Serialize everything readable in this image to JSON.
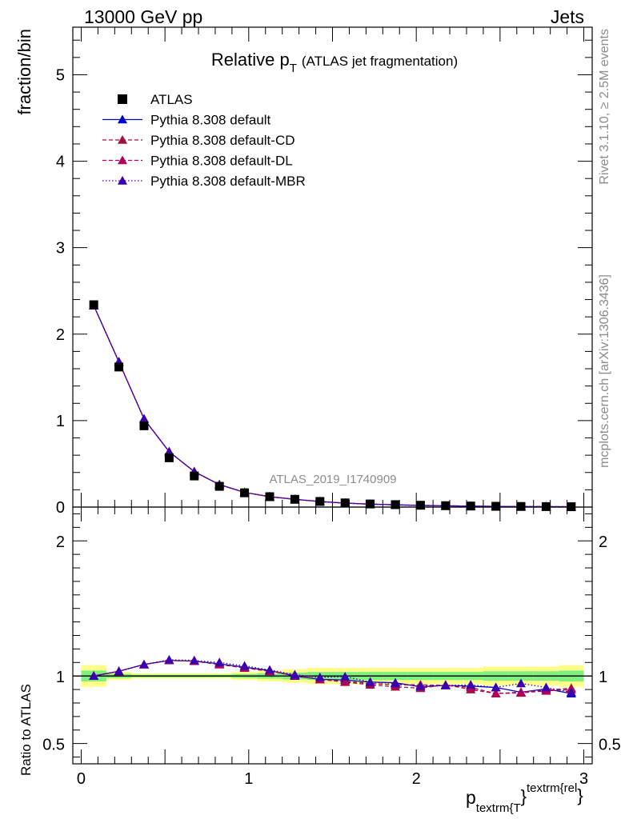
{
  "header": {
    "left": "13000 GeV pp",
    "right": "Jets"
  },
  "side_text": {
    "rivet": "Rivet 3.1.10, ≥ 2.5M events",
    "mcplots": "mcplots.cern.ch [arXiv:1306.3436]"
  },
  "colors": {
    "data": "#000000",
    "default": "#0000cc",
    "cd": "#a01040",
    "dl": "#b0005a",
    "mbr": "#3a00b0",
    "band_inner": "#7ff07f",
    "band_outer": "#ffff88",
    "ref_line": "#006400"
  },
  "chart_data": [
    {
      "type": "scatter",
      "title_main": "Relative p",
      "title_sub": "T",
      "title_rest": "(ATLAS jet fragmentation)",
      "ylabel": "fraction/bin",
      "watermark": "ATLAS_2019_I1740909",
      "xlim": [
        -0.05,
        3.05
      ],
      "ylim": [
        0,
        5.55
      ],
      "yticks": [
        0,
        1,
        2,
        3,
        4,
        5
      ],
      "ytick_labels": [
        "0",
        "1",
        "2",
        "3",
        "4",
        "5"
      ],
      "x": [
        0.075,
        0.225,
        0.375,
        0.525,
        0.675,
        0.825,
        0.975,
        1.125,
        1.275,
        1.425,
        1.575,
        1.725,
        1.875,
        2.025,
        2.175,
        2.325,
        2.475,
        2.625,
        2.775,
        2.925
      ],
      "legend": [
        "ATLAS",
        "Pythia 8.308 default",
        "Pythia 8.308 default-CD",
        "Pythia 8.308 default-DL",
        "Pythia 8.308 default-MBR"
      ],
      "series": [
        {
          "name": "ATLAS",
          "values": [
            2.34,
            1.62,
            0.94,
            0.57,
            0.36,
            0.24,
            0.165,
            0.12,
            0.09,
            0.065,
            0.048,
            0.036,
            0.028,
            0.021,
            0.016,
            0.012,
            0.009,
            0.007,
            0.0055,
            0.004
          ]
        },
        {
          "name": "Pythia 8.308 default",
          "values": [
            2.33,
            1.68,
            1.02,
            0.64,
            0.41,
            0.26,
            0.17,
            0.12,
            0.09,
            0.064,
            0.046,
            0.034,
            0.026,
            0.019,
            0.015,
            0.011,
            0.008,
            0.006,
            0.005,
            0.0035
          ]
        },
        {
          "name": "Pythia 8.308 default-CD",
          "values": [
            2.33,
            1.68,
            1.02,
            0.64,
            0.41,
            0.26,
            0.17,
            0.12,
            0.09,
            0.063,
            0.046,
            0.034,
            0.026,
            0.019,
            0.015,
            0.011,
            0.008,
            0.006,
            0.005,
            0.0035
          ]
        },
        {
          "name": "Pythia 8.308 default-DL",
          "values": [
            2.33,
            1.68,
            1.02,
            0.64,
            0.41,
            0.26,
            0.17,
            0.12,
            0.09,
            0.063,
            0.046,
            0.034,
            0.026,
            0.019,
            0.015,
            0.011,
            0.008,
            0.006,
            0.005,
            0.0035
          ]
        },
        {
          "name": "Pythia 8.308 default-MBR",
          "values": [
            2.33,
            1.68,
            1.02,
            0.64,
            0.41,
            0.26,
            0.17,
            0.12,
            0.09,
            0.064,
            0.046,
            0.034,
            0.026,
            0.019,
            0.015,
            0.011,
            0.008,
            0.006,
            0.005,
            0.0035
          ]
        }
      ]
    },
    {
      "type": "line",
      "ylabel": "Ratio to ATLAS",
      "xlabel_main": "p",
      "xlabel_sub": "textrm{T",
      "xlabel_sup": "textrm{rel",
      "xlim": [
        -0.05,
        3.05
      ],
      "ylim": [
        0.35,
        2.25
      ],
      "yticks": [
        0.5,
        1,
        2
      ],
      "ytick_labels": [
        "0.5",
        "1",
        "2"
      ],
      "xticks": [
        0,
        1,
        2,
        3
      ],
      "xtick_labels": [
        "0",
        "1",
        "2",
        "3"
      ],
      "x": [
        0.075,
        0.225,
        0.375,
        0.525,
        0.675,
        0.825,
        0.975,
        1.125,
        1.275,
        1.425,
        1.575,
        1.725,
        1.875,
        2.025,
        2.175,
        2.325,
        2.475,
        2.625,
        2.775,
        2.925
      ],
      "band_inner": [
        0.04,
        0.015,
        0.01,
        0.01,
        0.01,
        0.01,
        0.015,
        0.02,
        0.025,
        0.03,
        0.03,
        0.03,
        0.03,
        0.03,
        0.03,
        0.03,
        0.035,
        0.035,
        0.035,
        0.04
      ],
      "band_outer": [
        0.08,
        0.03,
        0.02,
        0.02,
        0.02,
        0.02,
        0.03,
        0.04,
        0.05,
        0.06,
        0.06,
        0.06,
        0.06,
        0.06,
        0.06,
        0.06,
        0.07,
        0.07,
        0.07,
        0.08
      ],
      "series": [
        {
          "name": "Pythia 8.308 default",
          "values": [
            1.0,
            1.035,
            1.085,
            1.115,
            1.11,
            1.09,
            1.065,
            1.04,
            1.0,
            0.975,
            0.97,
            0.955,
            0.95,
            0.92,
            0.93,
            0.925,
            0.915,
            0.88,
            0.905,
            0.87
          ]
        },
        {
          "name": "Pythia 8.308 default-CD",
          "values": [
            1.0,
            1.035,
            1.085,
            1.115,
            1.11,
            1.085,
            1.06,
            1.035,
            1.005,
            0.975,
            0.955,
            0.935,
            0.92,
            0.91,
            0.935,
            0.9,
            0.87,
            0.88,
            0.895,
            0.91
          ]
        },
        {
          "name": "Pythia 8.308 default-DL",
          "values": [
            1.0,
            1.035,
            1.085,
            1.115,
            1.11,
            1.085,
            1.06,
            1.035,
            1.005,
            0.975,
            0.96,
            0.945,
            0.935,
            0.935,
            0.93,
            0.915,
            0.87,
            0.875,
            0.89,
            0.9
          ]
        },
        {
          "name": "Pythia 8.308 default-MBR",
          "values": [
            1.0,
            1.035,
            1.085,
            1.12,
            1.115,
            1.1,
            1.075,
            1.045,
            1.01,
            0.99,
            0.995,
            0.955,
            0.945,
            0.925,
            0.93,
            0.935,
            0.915,
            0.945,
            0.915,
            0.88
          ]
        }
      ]
    }
  ]
}
